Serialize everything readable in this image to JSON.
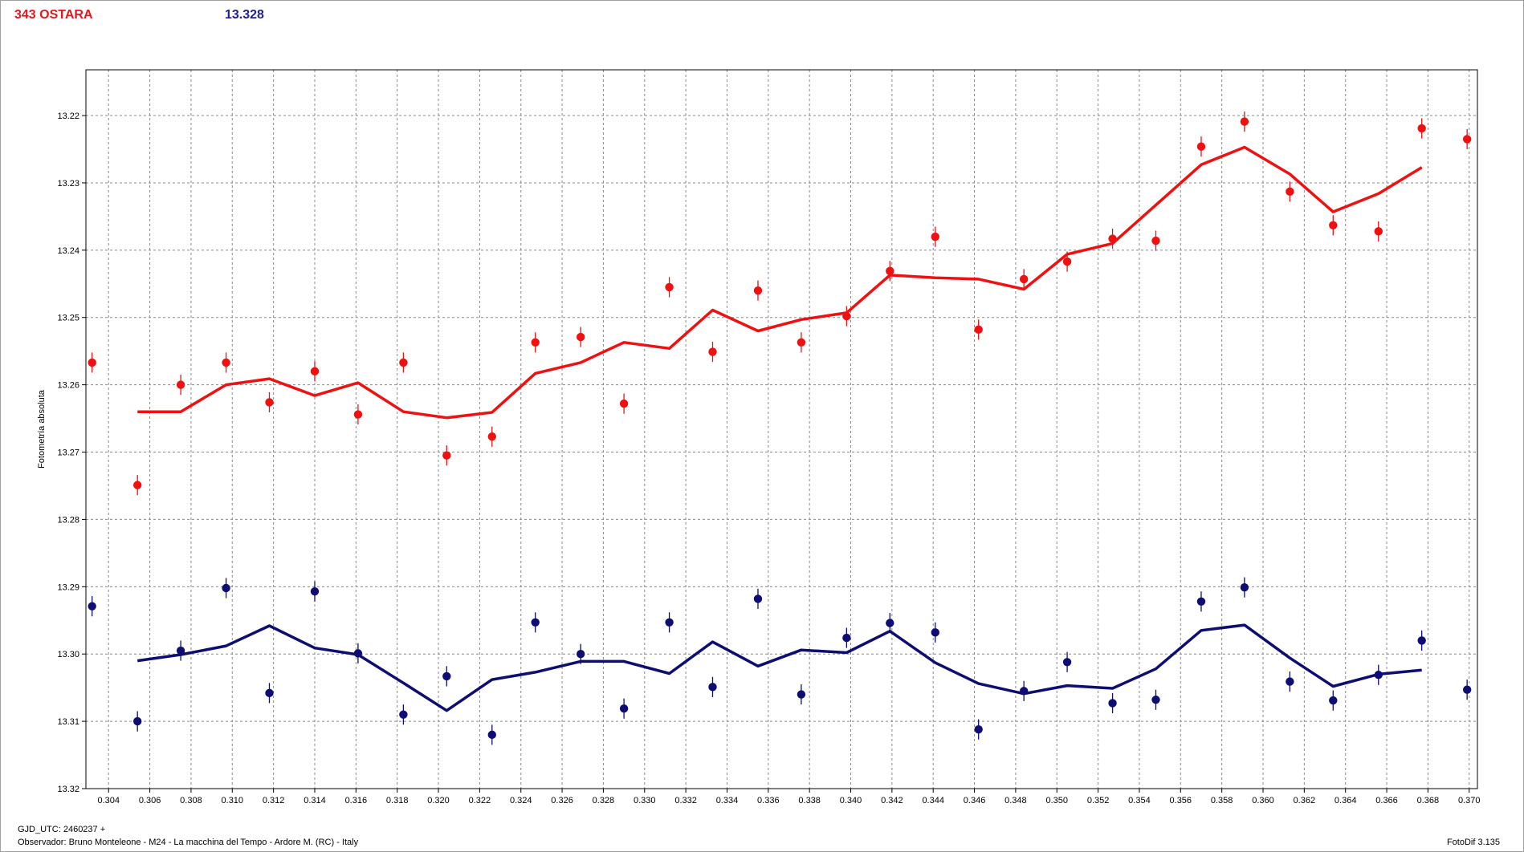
{
  "header": {
    "object_name": "343 OSTARA",
    "magnitude": "13.328"
  },
  "footer": {
    "gjd": "GJD_UTC: 2460237 +",
    "observer": "Observador: Bruno Monteleone - M24 - La macchina del Tempo - Ardore M. (RC) - Italy",
    "version": "FotoDif 3.135"
  },
  "colors": {
    "series_red": "#f01010",
    "series_blue": "#0d0d73",
    "grid": "#8a8a8a"
  },
  "chart_data": {
    "type": "scatter",
    "ylabel": "Fotometría absoluta",
    "xlim": [
      0.3029,
      0.3704
    ],
    "ylim": [
      13.2132,
      13.32
    ],
    "y_inverted": true,
    "grid": true,
    "x_ticks": [
      0.304,
      0.306,
      0.308,
      0.31,
      0.312,
      0.314,
      0.316,
      0.318,
      0.32,
      0.322,
      0.324,
      0.326,
      0.328,
      0.33,
      0.332,
      0.334,
      0.336,
      0.338,
      0.34,
      0.342,
      0.344,
      0.346,
      0.348,
      0.35,
      0.352,
      0.354,
      0.356,
      0.358,
      0.36,
      0.362,
      0.364,
      0.366,
      0.368,
      0.37
    ],
    "x_tick_labels": [
      "0.304",
      "0.306",
      "0.308",
      "0.310",
      "0.312",
      "0.314",
      "0.316",
      "0.318",
      "0.320",
      "0.322",
      "0.324",
      "0.326",
      "0.328",
      "0.330",
      "0.332",
      "0.334",
      "0.336",
      "0.338",
      "0.340",
      "0.342",
      "0.344",
      "0.346",
      "0.348",
      "0.350",
      "0.352",
      "0.354",
      "0.356",
      "0.358",
      "0.360",
      "0.362",
      "0.364",
      "0.366",
      "0.368",
      "0.370"
    ],
    "y_ticks": [
      13.22,
      13.23,
      13.24,
      13.25,
      13.26,
      13.27,
      13.28,
      13.29,
      13.3,
      13.31,
      13.32
    ],
    "y_tick_labels": [
      "13.22",
      "13.23",
      "13.24",
      "13.25",
      "13.26",
      "13.27",
      "13.28",
      "13.29",
      "13.30",
      "13.31",
      "13.32"
    ],
    "x": [
      0.3032,
      0.3054,
      0.3075,
      0.3097,
      0.3118,
      0.314,
      0.3161,
      0.3183,
      0.3204,
      0.3226,
      0.3247,
      0.3269,
      0.329,
      0.3312,
      0.3333,
      0.3355,
      0.3376,
      0.3398,
      0.3419,
      0.3441,
      0.3462,
      0.3484,
      0.3505,
      0.3527,
      0.3548,
      0.357,
      0.3591,
      0.3613,
      0.3634,
      0.3656,
      0.3677,
      0.3699
    ],
    "series": [
      {
        "values": [
          13.2567,
          13.2749,
          13.26,
          13.2567,
          13.2626,
          13.258,
          13.2644,
          13.2567,
          13.2705,
          13.2677,
          13.2537,
          13.2529,
          13.2628,
          13.2455,
          13.2551,
          13.246,
          13.2537,
          13.2498,
          13.2431,
          13.238,
          13.2518,
          13.2443,
          13.2417,
          13.2383,
          13.2386,
          13.2246,
          13.2209,
          13.2313,
          13.2363,
          13.2372,
          13.2219,
          13.2235
        ],
        "error": 0.0015,
        "fit": [
          null,
          13.264,
          13.264,
          13.26,
          13.2591,
          13.2616,
          13.2597,
          13.264,
          13.2649,
          13.2641,
          13.2583,
          13.2567,
          13.2537,
          13.2546,
          13.2489,
          13.252,
          13.2503,
          13.2493,
          13.2437,
          13.2441,
          13.2443,
          13.2458,
          13.2406,
          13.239,
          13.2333,
          13.2273,
          13.2247,
          13.2287,
          13.2343,
          13.2316,
          13.2277,
          null
        ],
        "color_key": "series_red"
      },
      {
        "values": [
          13.2929,
          13.31,
          13.2995,
          13.2902,
          13.3058,
          13.2907,
          13.2999,
          13.309,
          13.3033,
          13.312,
          13.2953,
          13.3,
          13.3081,
          13.2953,
          13.3049,
          13.2918,
          13.306,
          13.2976,
          13.2954,
          13.2968,
          13.3112,
          13.3055,
          13.3012,
          13.3073,
          13.3068,
          13.2922,
          13.2901,
          13.3041,
          13.3069,
          13.3031,
          13.298,
          13.3053
        ],
        "error": 0.0015,
        "fit": [
          null,
          13.301,
          13.3001,
          13.2988,
          13.2958,
          13.2991,
          13.3001,
          13.3043,
          13.3084,
          13.3038,
          13.3027,
          13.3011,
          13.3011,
          13.3029,
          13.2982,
          13.3018,
          13.2994,
          13.2998,
          13.2966,
          13.3013,
          13.3044,
          13.3059,
          13.3047,
          13.3051,
          13.3022,
          13.2965,
          13.2957,
          13.3006,
          13.3048,
          13.303,
          13.3024,
          null
        ],
        "color_key": "series_blue"
      }
    ]
  }
}
